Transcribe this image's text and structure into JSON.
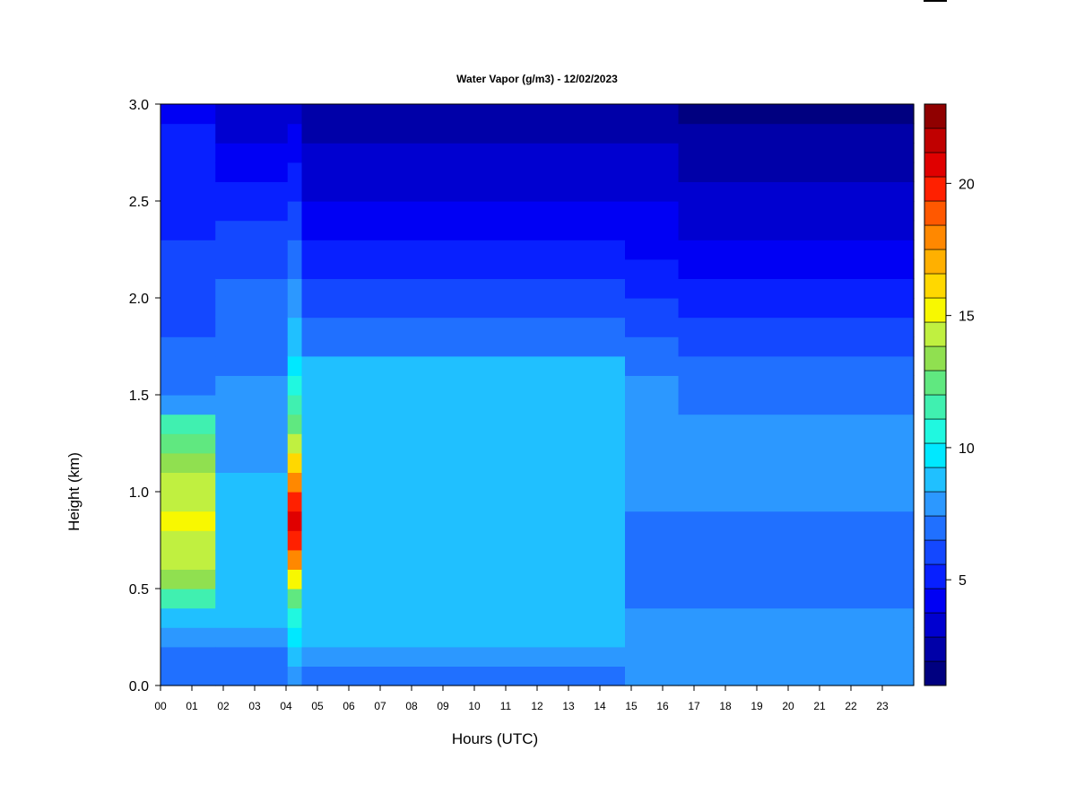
{
  "chart_data": {
    "type": "heatmap",
    "title": "Water Vapor (g/m3) - 12/02/2023",
    "xlabel": "Hours (UTC)",
    "ylabel": "Height (km)",
    "xlim": [
      0,
      24
    ],
    "ylim": [
      0.0,
      3.0
    ],
    "x_ticks": [
      "00",
      "01",
      "02",
      "03",
      "04",
      "05",
      "06",
      "07",
      "08",
      "09",
      "10",
      "11",
      "12",
      "13",
      "14",
      "15",
      "16",
      "17",
      "18",
      "19",
      "20",
      "21",
      "22",
      "23"
    ],
    "y_ticks": [
      "0.0",
      "0.5",
      "1.0",
      "1.5",
      "2.0",
      "2.5",
      "3.0"
    ],
    "colorbar": {
      "min": 1,
      "max": 23,
      "step": 1,
      "ticks": [
        5,
        10,
        15,
        20
      ],
      "colors": [
        "#000080",
        "#0000a8",
        "#0000d0",
        "#0000f4",
        "#0820ff",
        "#1448ff",
        "#2070ff",
        "#2c98ff",
        "#20c0ff",
        "#00e8ff",
        "#20f8e0",
        "#40f0b0",
        "#60e880",
        "#90e050",
        "#c0f040",
        "#f8f800",
        "#ffd800",
        "#ffb000",
        "#ff8800",
        "#ff5800",
        "#ff2000",
        "#e00000",
        "#c00000",
        "#900000"
      ]
    },
    "rows_km": [
      0.05,
      0.15,
      0.25,
      0.35,
      0.45,
      0.55,
      0.65,
      0.75,
      0.85,
      0.95,
      1.05,
      1.15,
      1.25,
      1.35,
      1.45,
      1.55,
      1.65,
      1.75,
      1.85,
      1.95,
      2.05,
      2.15,
      2.25,
      2.35,
      2.45,
      2.55,
      2.65,
      2.75,
      2.85,
      2.95
    ],
    "profiles": [
      {
        "from_hour": 0.0,
        "to_hour": 1.75,
        "values": [
          7,
          7.5,
          8.5,
          9.5,
          12,
          14,
          15,
          15.5,
          16,
          15.5,
          15,
          14,
          13,
          12,
          8,
          7,
          7,
          7,
          6.5,
          6.5,
          6,
          6,
          6,
          5.5,
          5.5,
          5.5,
          5,
          5,
          5,
          4.5
        ]
      },
      {
        "from_hour": 1.75,
        "to_hour": 4.05,
        "values": [
          7,
          7.5,
          8.5,
          9,
          9,
          9,
          9,
          9,
          9,
          9,
          9,
          8.5,
          8.5,
          8,
          8,
          8,
          7.5,
          7.5,
          7,
          7,
          7,
          6.5,
          6.5,
          6,
          5.5,
          5,
          4.5,
          4,
          3.5,
          3
        ]
      },
      {
        "from_hour": 4.05,
        "to_hour": 4.5,
        "values": [
          8,
          9,
          10,
          11,
          13,
          16,
          19,
          21,
          22,
          21,
          19,
          17,
          15,
          13,
          12,
          11,
          10,
          9.5,
          9,
          8.5,
          8,
          7.5,
          7,
          6.5,
          6,
          5.5,
          5,
          4.5,
          4,
          3.5
        ]
      },
      {
        "from_hour": 4.5,
        "to_hour": 14.8,
        "values": [
          7,
          8,
          9.5,
          9.5,
          9.5,
          9.5,
          9.5,
          9.5,
          9.5,
          9.5,
          9.5,
          9.5,
          9.5,
          9.5,
          9.5,
          9.5,
          9.5,
          7.5,
          7,
          6.5,
          6,
          5.5,
          5,
          4.5,
          4,
          3.5,
          3,
          3,
          2.5,
          2.5
        ]
      },
      {
        "from_hour": 14.8,
        "to_hour": 16.5,
        "values": [
          8,
          8.5,
          8.5,
          8,
          7,
          7,
          7,
          7.5,
          7.5,
          8,
          8,
          8,
          8,
          8,
          8,
          8,
          7.5,
          7,
          6.5,
          6,
          5.5,
          5,
          4.5,
          4,
          4,
          3.5,
          3,
          3,
          2.5,
          2.5
        ]
      },
      {
        "from_hour": 16.5,
        "to_hour": 24.0,
        "values": [
          8.5,
          8.5,
          8.5,
          8,
          7.5,
          7.5,
          7.5,
          7.5,
          7.5,
          8,
          8,
          8,
          8,
          8,
          7.5,
          7.5,
          7,
          6.5,
          6,
          5.5,
          5,
          4.5,
          4,
          3.5,
          3,
          3,
          2.5,
          2,
          2,
          1.5
        ]
      }
    ]
  }
}
